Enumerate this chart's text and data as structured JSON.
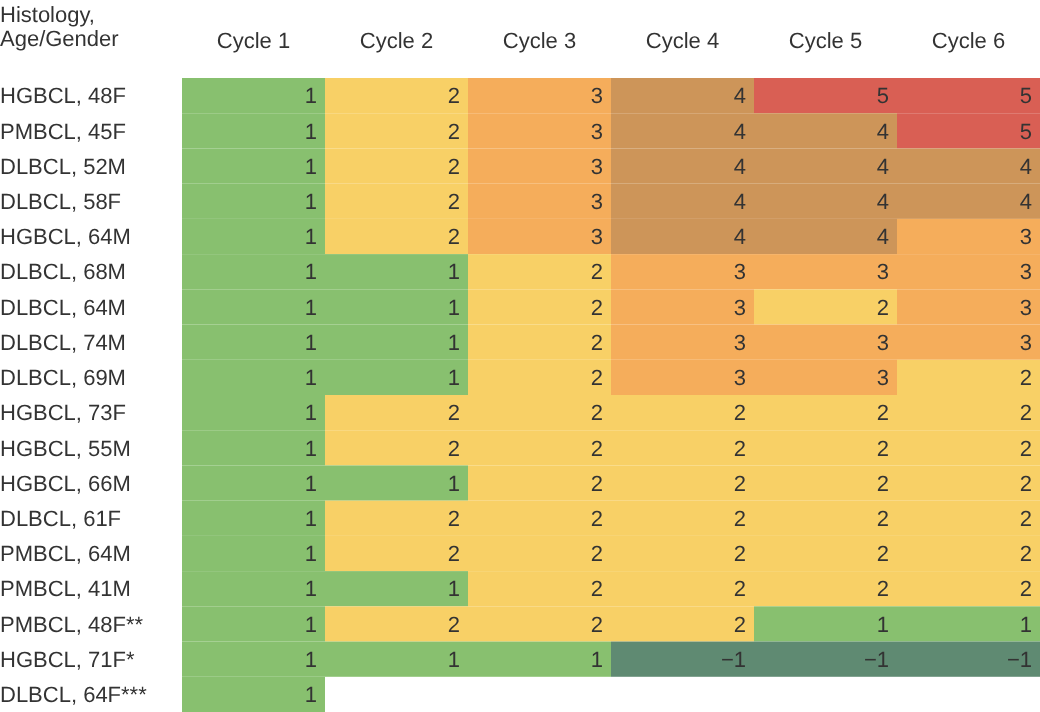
{
  "chart_data": {
    "type": "heatmap",
    "ylabel": "Histology,\nAge/Gender",
    "categories": [
      "Cycle 1",
      "Cycle 2",
      "Cycle 3",
      "Cycle 4",
      "Cycle 5",
      "Cycle 6"
    ],
    "y_categories": [
      "HGBCL, 48F",
      "PMBCL, 45F",
      "DLBCL, 52M",
      "DLBCL, 58F",
      "HGBCL, 64M",
      "DLBCL, 68M",
      "DLBCL, 64M",
      "DLBCL, 74M",
      "DLBCL, 69M",
      "HGBCL, 73F",
      "HGBCL, 55M",
      "HGBCL, 66M",
      "DLBCL, 61F",
      "PMBCL, 64M",
      "PMBCL, 41M",
      "PMBCL, 48F**",
      "HGBCL, 71F*",
      "DLBCL, 64F***"
    ],
    "cells": [
      [
        1,
        2,
        3,
        4,
        5,
        5
      ],
      [
        1,
        2,
        3,
        4,
        4,
        5
      ],
      [
        1,
        2,
        3,
        4,
        4,
        4
      ],
      [
        1,
        2,
        3,
        4,
        4,
        4
      ],
      [
        1,
        2,
        3,
        4,
        4,
        3
      ],
      [
        1,
        1,
        2,
        3,
        3,
        3
      ],
      [
        1,
        1,
        2,
        3,
        2,
        3
      ],
      [
        1,
        1,
        2,
        3,
        3,
        3
      ],
      [
        1,
        1,
        2,
        3,
        3,
        2
      ],
      [
        1,
        2,
        2,
        2,
        2,
        2
      ],
      [
        1,
        2,
        2,
        2,
        2,
        2
      ],
      [
        1,
        1,
        2,
        2,
        2,
        2
      ],
      [
        1,
        2,
        2,
        2,
        2,
        2
      ],
      [
        1,
        2,
        2,
        2,
        2,
        2
      ],
      [
        1,
        1,
        2,
        2,
        2,
        2
      ],
      [
        1,
        2,
        2,
        2,
        1,
        1
      ],
      [
        1,
        1,
        1,
        -1,
        -1,
        -1
      ],
      [
        1,
        null,
        null,
        null,
        null,
        null
      ]
    ],
    "data_labels": true
  }
}
